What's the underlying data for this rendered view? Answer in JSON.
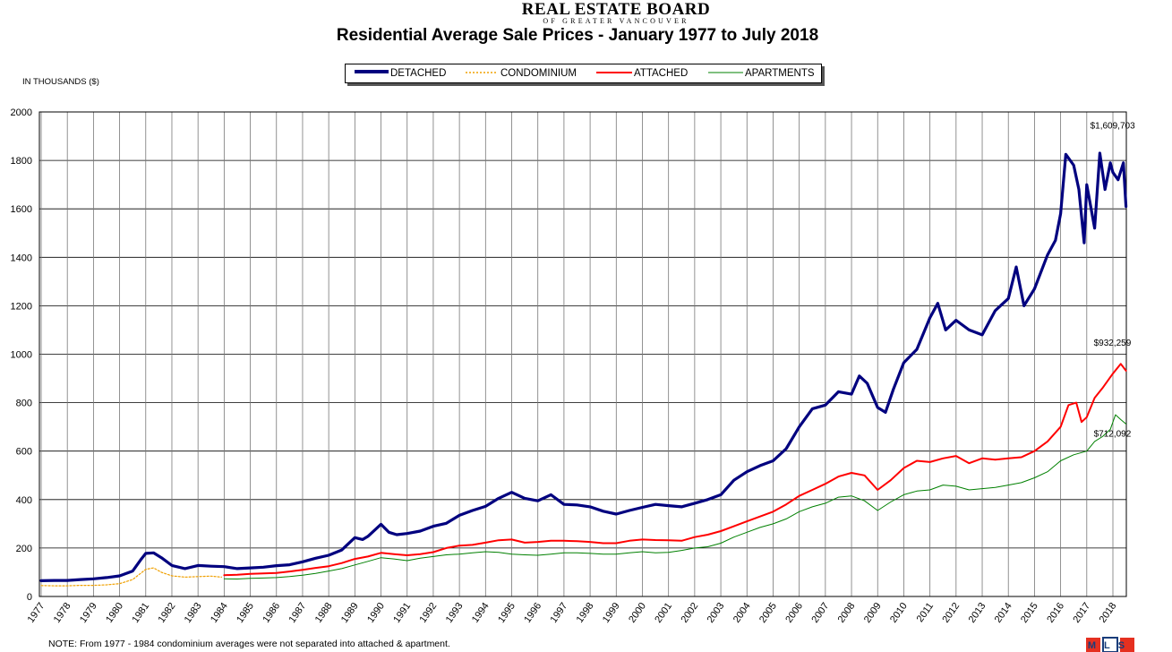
{
  "header": {
    "logo_main": "REAL ESTATE BOARD",
    "logo_sub": "OF GREATER VANCOUVER"
  },
  "mls_logo": "MLS",
  "colors": {
    "detached": "#00007f",
    "condominium": "#f0a000",
    "attached": "#ff0000",
    "apartments": "#008000",
    "grid": "#000000"
  },
  "chart_data": {
    "type": "line",
    "title": "Residential Average Sale Prices  -  January 1977 to July 2018",
    "ylabel": "IN THOUSANDS ($)",
    "xlabel": "",
    "note": "NOTE:  From 1977 - 1984 condominium averages were not separated into attached & apartment.",
    "ylim": [
      0,
      2000
    ],
    "yticks": [
      0,
      200,
      400,
      600,
      800,
      1000,
      1200,
      1400,
      1600,
      1800,
      2000
    ],
    "xlim": [
      1977,
      2018.6
    ],
    "xticks": [
      1977,
      1978,
      1979,
      1980,
      1981,
      1982,
      1983,
      1984,
      1985,
      1986,
      1987,
      1988,
      1989,
      1990,
      1991,
      1992,
      1993,
      1994,
      1995,
      1996,
      1997,
      1998,
      1999,
      2000,
      2001,
      2002,
      2003,
      2004,
      2005,
      2006,
      2007,
      2008,
      2009,
      2010,
      2011,
      2012,
      2013,
      2014,
      2015,
      2016,
      2017,
      2018
    ],
    "grid": true,
    "legend_position": "top-center",
    "series": [
      {
        "name": "DETACHED",
        "style": "thick-solid",
        "points": [
          [
            1977.0,
            65
          ],
          [
            1977.5,
            66
          ],
          [
            1978.0,
            66
          ],
          [
            1978.5,
            70
          ],
          [
            1979.0,
            73
          ],
          [
            1979.5,
            78
          ],
          [
            1980.0,
            85
          ],
          [
            1980.5,
            105
          ],
          [
            1980.8,
            150
          ],
          [
            1981.0,
            178
          ],
          [
            1981.3,
            180
          ],
          [
            1981.6,
            160
          ],
          [
            1982.0,
            128
          ],
          [
            1982.5,
            115
          ],
          [
            1983.0,
            128
          ],
          [
            1983.5,
            125
          ],
          [
            1984.0,
            123
          ],
          [
            1984.5,
            115
          ],
          [
            1985.0,
            118
          ],
          [
            1985.5,
            121
          ],
          [
            1986.0,
            127
          ],
          [
            1986.5,
            131
          ],
          [
            1987.0,
            143
          ],
          [
            1987.5,
            158
          ],
          [
            1988.0,
            170
          ],
          [
            1988.5,
            192
          ],
          [
            1989.0,
            243
          ],
          [
            1989.3,
            235
          ],
          [
            1989.5,
            248
          ],
          [
            1990.0,
            298
          ],
          [
            1990.3,
            265
          ],
          [
            1990.6,
            255
          ],
          [
            1991.0,
            260
          ],
          [
            1991.5,
            270
          ],
          [
            1992.0,
            290
          ],
          [
            1992.5,
            302
          ],
          [
            1993.0,
            335
          ],
          [
            1993.5,
            355
          ],
          [
            1994.0,
            372
          ],
          [
            1994.5,
            405
          ],
          [
            1995.0,
            430
          ],
          [
            1995.5,
            405
          ],
          [
            1996.0,
            395
          ],
          [
            1996.5,
            420
          ],
          [
            1997.0,
            380
          ],
          [
            1997.5,
            378
          ],
          [
            1998.0,
            370
          ],
          [
            1998.5,
            352
          ],
          [
            1999.0,
            340
          ],
          [
            1999.5,
            355
          ],
          [
            2000.0,
            368
          ],
          [
            2000.5,
            380
          ],
          [
            2001.0,
            375
          ],
          [
            2001.5,
            370
          ],
          [
            2002.0,
            385
          ],
          [
            2002.5,
            400
          ],
          [
            2003.0,
            420
          ],
          [
            2003.5,
            480
          ],
          [
            2004.0,
            515
          ],
          [
            2004.5,
            540
          ],
          [
            2005.0,
            560
          ],
          [
            2005.5,
            610
          ],
          [
            2006.0,
            700
          ],
          [
            2006.5,
            775
          ],
          [
            2007.0,
            790
          ],
          [
            2007.5,
            845
          ],
          [
            2008.0,
            835
          ],
          [
            2008.3,
            910
          ],
          [
            2008.6,
            880
          ],
          [
            2009.0,
            780
          ],
          [
            2009.3,
            760
          ],
          [
            2009.6,
            855
          ],
          [
            2010.0,
            965
          ],
          [
            2010.5,
            1020
          ],
          [
            2011.0,
            1150
          ],
          [
            2011.3,
            1210
          ],
          [
            2011.6,
            1100
          ],
          [
            2012.0,
            1140
          ],
          [
            2012.5,
            1100
          ],
          [
            2013.0,
            1080
          ],
          [
            2013.5,
            1180
          ],
          [
            2014.0,
            1230
          ],
          [
            2014.3,
            1360
          ],
          [
            2014.6,
            1200
          ],
          [
            2015.0,
            1270
          ],
          [
            2015.5,
            1410
          ],
          [
            2015.8,
            1470
          ],
          [
            2016.0,
            1580
          ],
          [
            2016.2,
            1825
          ],
          [
            2016.5,
            1780
          ],
          [
            2016.7,
            1680
          ],
          [
            2016.9,
            1460
          ],
          [
            2017.0,
            1700
          ],
          [
            2017.3,
            1520
          ],
          [
            2017.5,
            1830
          ],
          [
            2017.7,
            1680
          ],
          [
            2017.9,
            1790
          ],
          [
            2018.0,
            1750
          ],
          [
            2018.2,
            1720
          ],
          [
            2018.4,
            1790
          ],
          [
            2018.5,
            1610
          ]
        ]
      },
      {
        "name": "CONDOMINIUM",
        "style": "dotted",
        "points": [
          [
            1977.0,
            45
          ],
          [
            1977.5,
            44
          ],
          [
            1978.0,
            44
          ],
          [
            1978.5,
            46
          ],
          [
            1979.0,
            46
          ],
          [
            1979.5,
            48
          ],
          [
            1980.0,
            53
          ],
          [
            1980.5,
            70
          ],
          [
            1980.8,
            95
          ],
          [
            1981.0,
            112
          ],
          [
            1981.3,
            118
          ],
          [
            1981.6,
            100
          ],
          [
            1982.0,
            85
          ],
          [
            1982.5,
            80
          ],
          [
            1983.0,
            82
          ],
          [
            1983.5,
            84
          ],
          [
            1983.9,
            80
          ]
        ]
      },
      {
        "name": "ATTACHED",
        "style": "solid",
        "points": [
          [
            1984.0,
            88
          ],
          [
            1984.5,
            90
          ],
          [
            1985.0,
            93
          ],
          [
            1985.5,
            95
          ],
          [
            1986.0,
            97
          ],
          [
            1986.5,
            103
          ],
          [
            1987.0,
            110
          ],
          [
            1987.5,
            118
          ],
          [
            1988.0,
            125
          ],
          [
            1988.5,
            138
          ],
          [
            1989.0,
            155
          ],
          [
            1989.5,
            165
          ],
          [
            1990.0,
            180
          ],
          [
            1990.5,
            175
          ],
          [
            1991.0,
            170
          ],
          [
            1991.5,
            175
          ],
          [
            1992.0,
            183
          ],
          [
            1992.5,
            200
          ],
          [
            1993.0,
            210
          ],
          [
            1993.5,
            213
          ],
          [
            1994.0,
            222
          ],
          [
            1994.5,
            232
          ],
          [
            1995.0,
            235
          ],
          [
            1995.5,
            222
          ],
          [
            1996.0,
            225
          ],
          [
            1996.5,
            230
          ],
          [
            1997.0,
            230
          ],
          [
            1997.5,
            228
          ],
          [
            1998.0,
            225
          ],
          [
            1998.5,
            220
          ],
          [
            1999.0,
            220
          ],
          [
            1999.5,
            230
          ],
          [
            2000.0,
            235
          ],
          [
            2000.5,
            233
          ],
          [
            2001.0,
            232
          ],
          [
            2001.5,
            230
          ],
          [
            2002.0,
            245
          ],
          [
            2002.5,
            255
          ],
          [
            2003.0,
            270
          ],
          [
            2003.5,
            290
          ],
          [
            2004.0,
            310
          ],
          [
            2004.5,
            330
          ],
          [
            2005.0,
            350
          ],
          [
            2005.5,
            380
          ],
          [
            2006.0,
            415
          ],
          [
            2006.5,
            440
          ],
          [
            2007.0,
            465
          ],
          [
            2007.5,
            495
          ],
          [
            2008.0,
            510
          ],
          [
            2008.5,
            500
          ],
          [
            2009.0,
            440
          ],
          [
            2009.5,
            480
          ],
          [
            2010.0,
            530
          ],
          [
            2010.5,
            560
          ],
          [
            2011.0,
            555
          ],
          [
            2011.5,
            570
          ],
          [
            2012.0,
            580
          ],
          [
            2012.5,
            550
          ],
          [
            2013.0,
            570
          ],
          [
            2013.5,
            565
          ],
          [
            2014.0,
            570
          ],
          [
            2014.5,
            575
          ],
          [
            2015.0,
            600
          ],
          [
            2015.5,
            640
          ],
          [
            2016.0,
            700
          ],
          [
            2016.3,
            790
          ],
          [
            2016.6,
            800
          ],
          [
            2016.8,
            720
          ],
          [
            2017.0,
            740
          ],
          [
            2017.3,
            820
          ],
          [
            2017.6,
            860
          ],
          [
            2018.0,
            920
          ],
          [
            2018.3,
            960
          ],
          [
            2018.5,
            932
          ]
        ]
      },
      {
        "name": "APARTMENTS",
        "style": "thin-solid",
        "points": [
          [
            1984.0,
            73
          ],
          [
            1984.5,
            72
          ],
          [
            1985.0,
            75
          ],
          [
            1985.5,
            76
          ],
          [
            1986.0,
            78
          ],
          [
            1986.5,
            82
          ],
          [
            1987.0,
            88
          ],
          [
            1987.5,
            95
          ],
          [
            1988.0,
            105
          ],
          [
            1988.5,
            115
          ],
          [
            1989.0,
            130
          ],
          [
            1989.5,
            145
          ],
          [
            1990.0,
            160
          ],
          [
            1990.5,
            155
          ],
          [
            1991.0,
            148
          ],
          [
            1991.5,
            158
          ],
          [
            1992.0,
            165
          ],
          [
            1992.5,
            172
          ],
          [
            1993.0,
            175
          ],
          [
            1993.5,
            180
          ],
          [
            1994.0,
            185
          ],
          [
            1994.5,
            182
          ],
          [
            1995.0,
            175
          ],
          [
            1995.5,
            172
          ],
          [
            1996.0,
            170
          ],
          [
            1996.5,
            175
          ],
          [
            1997.0,
            180
          ],
          [
            1997.5,
            180
          ],
          [
            1998.0,
            178
          ],
          [
            1998.5,
            175
          ],
          [
            1999.0,
            175
          ],
          [
            1999.5,
            180
          ],
          [
            2000.0,
            185
          ],
          [
            2000.5,
            180
          ],
          [
            2001.0,
            182
          ],
          [
            2001.5,
            190
          ],
          [
            2002.0,
            200
          ],
          [
            2002.5,
            205
          ],
          [
            2003.0,
            220
          ],
          [
            2003.5,
            245
          ],
          [
            2004.0,
            265
          ],
          [
            2004.5,
            285
          ],
          [
            2005.0,
            300
          ],
          [
            2005.5,
            320
          ],
          [
            2006.0,
            350
          ],
          [
            2006.5,
            370
          ],
          [
            2007.0,
            385
          ],
          [
            2007.5,
            410
          ],
          [
            2008.0,
            415
          ],
          [
            2008.5,
            395
          ],
          [
            2009.0,
            355
          ],
          [
            2009.5,
            390
          ],
          [
            2010.0,
            420
          ],
          [
            2010.5,
            435
          ],
          [
            2011.0,
            440
          ],
          [
            2011.5,
            460
          ],
          [
            2012.0,
            455
          ],
          [
            2012.5,
            440
          ],
          [
            2013.0,
            445
          ],
          [
            2013.5,
            450
          ],
          [
            2014.0,
            460
          ],
          [
            2014.5,
            470
          ],
          [
            2015.0,
            490
          ],
          [
            2015.5,
            515
          ],
          [
            2016.0,
            560
          ],
          [
            2016.5,
            585
          ],
          [
            2017.0,
            600
          ],
          [
            2017.3,
            640
          ],
          [
            2017.6,
            660
          ],
          [
            2017.9,
            690
          ],
          [
            2018.1,
            750
          ],
          [
            2018.3,
            730
          ],
          [
            2018.5,
            712
          ]
        ]
      }
    ],
    "annotations": [
      {
        "text": "$1,609,703",
        "x": 2018.5,
        "y": 1609.703
      },
      {
        "text": "$932,259",
        "x": 2018.5,
        "y": 932.259
      },
      {
        "text": "$712,092",
        "x": 2018.5,
        "y": 712.092
      }
    ]
  }
}
